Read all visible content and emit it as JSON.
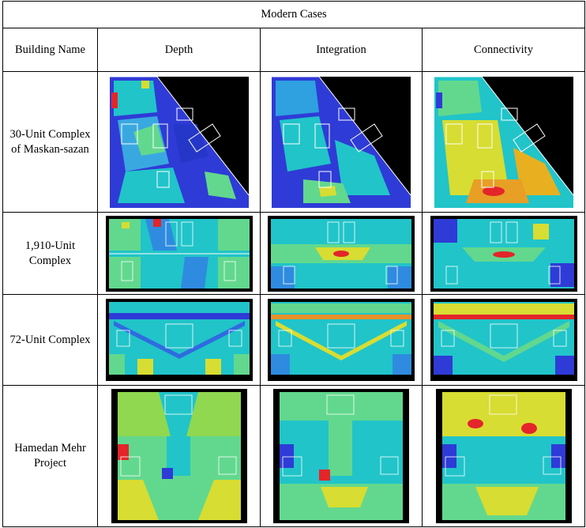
{
  "table": {
    "title": "Modern Cases",
    "headers": [
      "Building Name",
      "Depth",
      "Integration",
      "Connectivity"
    ],
    "rows": [
      {
        "name": "30-Unit Complex of Maskan-sazan",
        "images": [
          "depth-map",
          "integration-map",
          "connectivity-map"
        ]
      },
      {
        "name": "1,910-Unit Complex",
        "images": [
          "depth-map",
          "integration-map",
          "connectivity-map"
        ]
      },
      {
        "name": "72-Unit Complex",
        "images": [
          "depth-map",
          "integration-map",
          "connectivity-map"
        ]
      },
      {
        "name": "Hamedan Mehr Project",
        "images": [
          "depth-map",
          "integration-map",
          "connectivity-map"
        ]
      }
    ]
  },
  "colors": {
    "background": "#000000",
    "low": "#2f3bd6",
    "mid_low": "#21c4c9",
    "mid": "#62d88e",
    "mid_high": "#d7dd32",
    "high": "#e4252a",
    "wall": "#ffffff"
  }
}
